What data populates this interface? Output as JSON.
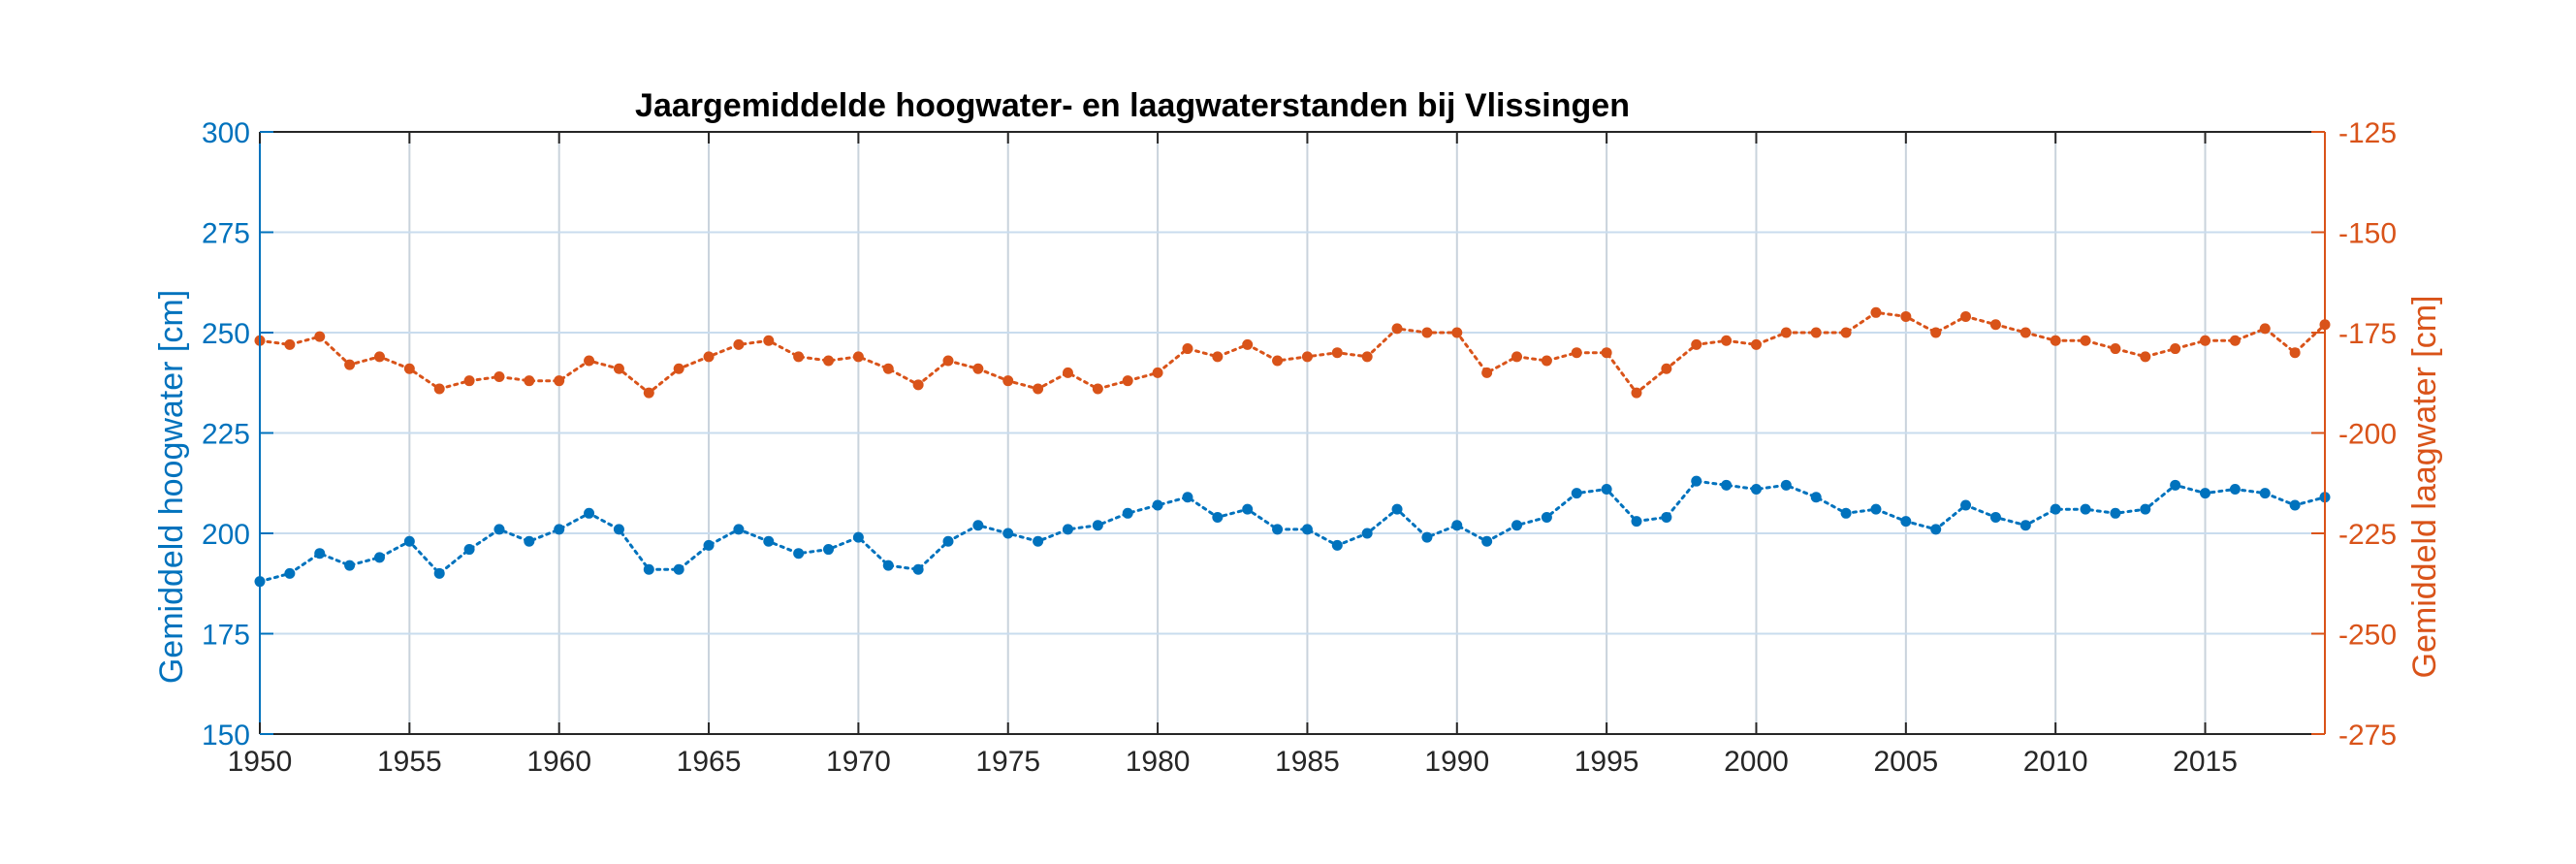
{
  "chart_data": {
    "type": "line",
    "title": "Jaargemiddelde hoogwater- en laagwaterstanden bij Vlissingen",
    "xlabel": "",
    "xlim": [
      1950,
      2019
    ],
    "xticks": [
      1950,
      1955,
      1960,
      1965,
      1970,
      1975,
      1980,
      1985,
      1990,
      1995,
      2000,
      2005,
      2010,
      2015
    ],
    "grid": true,
    "legend": "none",
    "left_axis": {
      "label": "Gemiddeld hoogwater [cm]",
      "ylim": [
        150,
        300
      ],
      "ticks": [
        150,
        175,
        200,
        225,
        250,
        275,
        300
      ],
      "color": "#0072BD"
    },
    "right_axis": {
      "label": "Gemiddeld laagwater [cm]",
      "ylim": [
        -275,
        -125
      ],
      "ticks": [
        -275,
        -250,
        -225,
        -200,
        -175,
        -150,
        -125
      ],
      "color": "#D95319"
    },
    "x": [
      1950,
      1951,
      1952,
      1953,
      1954,
      1955,
      1956,
      1957,
      1958,
      1959,
      1960,
      1961,
      1962,
      1963,
      1964,
      1965,
      1966,
      1967,
      1968,
      1969,
      1970,
      1971,
      1972,
      1973,
      1974,
      1975,
      1976,
      1977,
      1978,
      1979,
      1980,
      1981,
      1982,
      1983,
      1984,
      1985,
      1986,
      1987,
      1988,
      1989,
      1990,
      1991,
      1992,
      1993,
      1994,
      1995,
      1996,
      1997,
      1998,
      1999,
      2000,
      2001,
      2002,
      2003,
      2004,
      2005,
      2006,
      2007,
      2008,
      2009,
      2010,
      2011,
      2012,
      2013,
      2014,
      2015,
      2016,
      2017,
      2018,
      2019
    ],
    "series": [
      {
        "axis": "left",
        "values": [
          188,
          190,
          195,
          192,
          194,
          198,
          190,
          196,
          201,
          198,
          201,
          205,
          201,
          191,
          191,
          197,
          201,
          198,
          195,
          196,
          199,
          192,
          191,
          198,
          202,
          200,
          198,
          201,
          202,
          205,
          207,
          209,
          204,
          206,
          201,
          201,
          197,
          200,
          206,
          199,
          202,
          198,
          202,
          204,
          210,
          211,
          203,
          204,
          213,
          212,
          211,
          212,
          209,
          205,
          206,
          203,
          201,
          207,
          204,
          202,
          206,
          206,
          205,
          206,
          212,
          210,
          211,
          210,
          207,
          209
        ]
      },
      {
        "axis": "right",
        "values": [
          -177,
          -178,
          -176,
          -183,
          -181,
          -184,
          -189,
          -187,
          -186,
          -187,
          -187,
          -182,
          -184,
          -190,
          -184,
          -181,
          -178,
          -177,
          -181,
          -182,
          -181,
          -184,
          -188,
          -182,
          -184,
          -187,
          -189,
          -185,
          -189,
          -187,
          -185,
          -179,
          -181,
          -178,
          -182,
          -181,
          -180,
          -181,
          -174,
          -175,
          -175,
          -185,
          -181,
          -182,
          -180,
          -180,
          -190,
          -184,
          -178,
          -177,
          -178,
          -175,
          -175,
          -175,
          -170,
          -171,
          -175,
          -171,
          -173,
          -175,
          -177,
          -177,
          -179,
          -181,
          -179,
          -177,
          -177,
          -174,
          -180,
          -173
        ]
      }
    ]
  }
}
